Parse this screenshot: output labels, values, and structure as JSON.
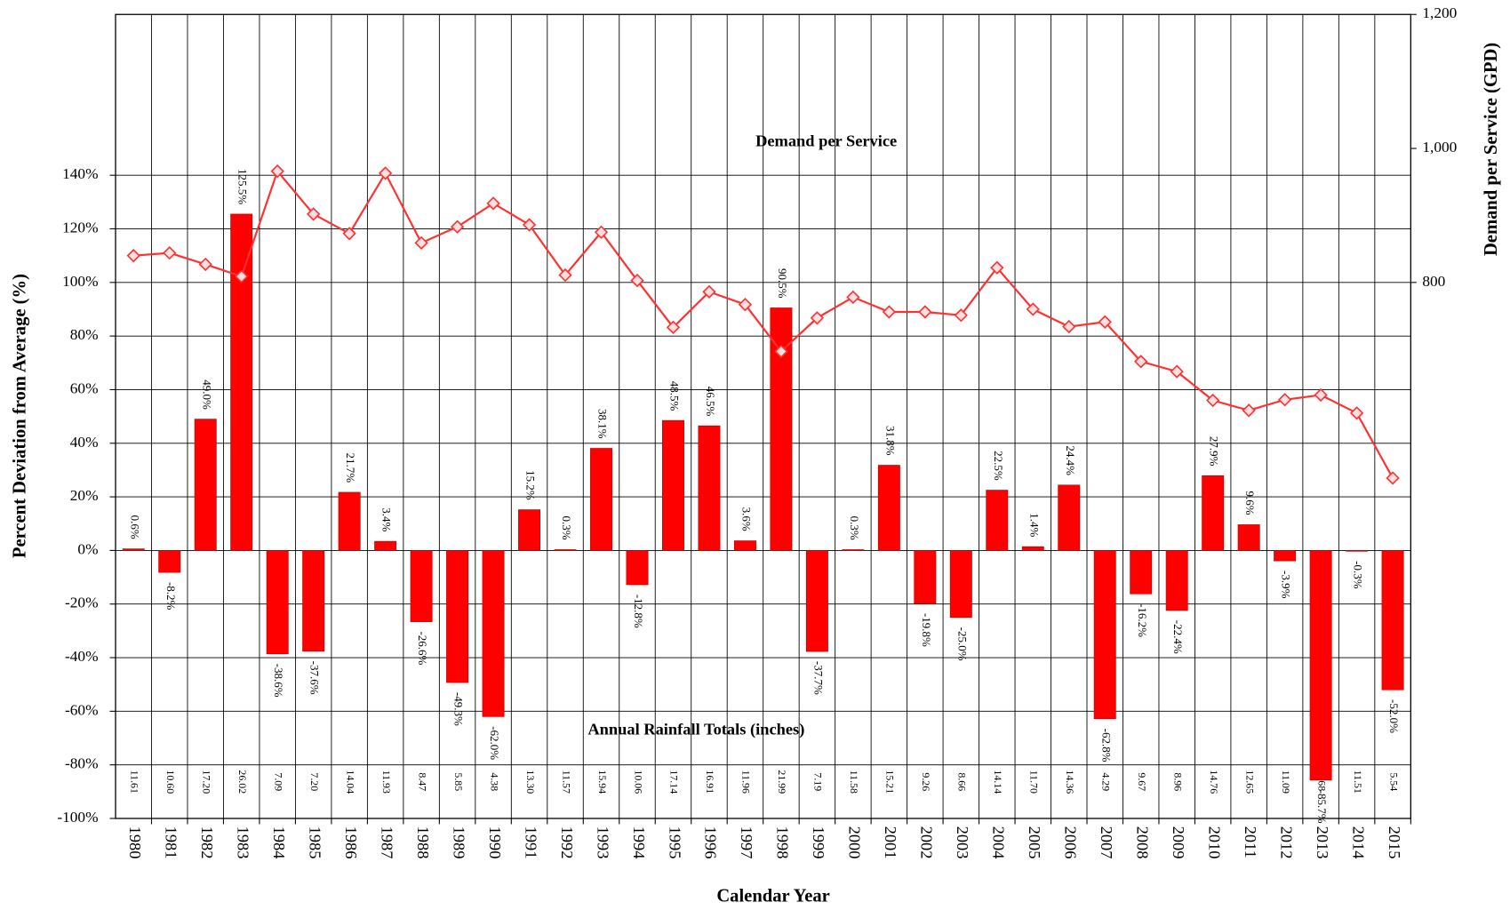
{
  "chart_data": {
    "type": "bar",
    "x_label": "Calendar Year",
    "y_label": "Percent Deviation from Average (%)",
    "y2_label": "Demand per Service (GPD)",
    "annotations": [
      "Demand per Service",
      "Annual Rainfall Totals (inches)"
    ],
    "categories": [
      "1980",
      "1981",
      "1982",
      "1983",
      "1984",
      "1985",
      "1986",
      "1987",
      "1988",
      "1989",
      "1990",
      "1991",
      "1992",
      "1993",
      "1994",
      "1995",
      "1996",
      "1997",
      "1998",
      "1999",
      "2000",
      "2001",
      "2002",
      "2003",
      "2004",
      "2005",
      "2006",
      "2007",
      "2008",
      "2009",
      "2010",
      "2011",
      "2012",
      "2013",
      "2014",
      "2015"
    ],
    "series": [
      {
        "type": "bar",
        "color": "#ff0000",
        "values": [
          0.6,
          -8.2,
          49.0,
          125.5,
          -38.6,
          -37.6,
          21.7,
          3.4,
          -26.6,
          -49.3,
          -62.0,
          15.2,
          0.3,
          38.1,
          -12.8,
          48.5,
          46.5,
          3.6,
          90.5,
          -37.7,
          0.3,
          31.8,
          -19.8,
          -25.0,
          22.5,
          1.4,
          24.4,
          -62.8,
          -16.2,
          -22.4,
          27.9,
          9.6,
          -3.9,
          -85.7,
          -0.3,
          -52.0
        ],
        "value_labels": [
          "0.6%",
          "-8.2%",
          "49.0%",
          "125.5%",
          "-38.6%",
          "-37.6%",
          "21.7%",
          "3.4%",
          "-26.6%",
          "-49.3%",
          "-62.0%",
          "15.2%",
          "0.3%",
          "38.1%",
          "-12.8%",
          "48.5%",
          "46.5%",
          "3.6%",
          "90.5%",
          "-37.7%",
          "0.3%",
          "31.8%",
          "-19.8%",
          "-25.0%",
          "22.5%",
          "1.4%",
          "24.4%",
          "-62.8%",
          "-16.2%",
          "-22.4%",
          "27.9%",
          "9.6%",
          "-3.9%",
          "-85.7%",
          "-0.3%",
          "-52.0%"
        ]
      },
      {
        "type": "line",
        "axis": "y2",
        "color": "#ff3030",
        "values": [
          840,
          844,
          827,
          809,
          966,
          902,
          873,
          963,
          859,
          883,
          918,
          886,
          811,
          875,
          803,
          733,
          786,
          767,
          697,
          747,
          778,
          756,
          756,
          751,
          822,
          760,
          734,
          741,
          682,
          667,
          624,
          609,
          625,
          632,
          605,
          508
        ]
      }
    ],
    "rainfall": {
      "values": [
        11.61,
        10.6,
        17.2,
        26.02,
        7.09,
        7.2,
        14.04,
        11.93,
        8.47,
        5.85,
        4.38,
        13.3,
        11.57,
        15.94,
        10.06,
        17.14,
        16.91,
        11.96,
        21.99,
        7.19,
        11.58,
        15.21,
        9.26,
        8.66,
        14.14,
        11.7,
        14.36,
        4.29,
        9.67,
        8.96,
        14.76,
        12.65,
        11.09,
        1.68,
        11.51,
        5.54
      ],
      "value_labels": [
        "11.61",
        "10.60",
        "17.20",
        "26.02",
        "7.09",
        "7.20",
        "14.04",
        "11.93",
        "8.47",
        "5.85",
        "4.38",
        "13.30",
        "11.57",
        "15.94",
        "10.06",
        "17.14",
        "16.91",
        "11.96",
        "21.99",
        "7.19",
        "11.58",
        "15.21",
        "9.26",
        "8.66",
        "14.14",
        "11.70",
        "14.36",
        "4.29",
        "9.67",
        "8.96",
        "14.76",
        "12.65",
        "11.09",
        "1.68",
        "11.51",
        "5.54"
      ]
    },
    "ylim": [
      -100,
      200
    ],
    "yticks": [
      {
        "value": -100,
        "label": "-100%"
      },
      {
        "value": -80,
        "label": "-80%"
      },
      {
        "value": -60,
        "label": "-60%"
      },
      {
        "value": -40,
        "label": "-40%"
      },
      {
        "value": -20,
        "label": "-20%"
      },
      {
        "value": 0,
        "label": "0%"
      },
      {
        "value": 20,
        "label": "20%"
      },
      {
        "value": 40,
        "label": "40%"
      },
      {
        "value": 60,
        "label": "60%"
      },
      {
        "value": 80,
        "label": "80%"
      },
      {
        "value": 100,
        "label": "100%"
      },
      {
        "value": 120,
        "label": "120%"
      },
      {
        "value": 140,
        "label": "140%"
      }
    ],
    "y2lim": [
      0,
      1200
    ],
    "y2ticks": [
      800,
      {
        "value": 1000,
        "label": "1,000"
      },
      {
        "value": 1200,
        "label": "1,200"
      }
    ],
    "grid": true
  }
}
